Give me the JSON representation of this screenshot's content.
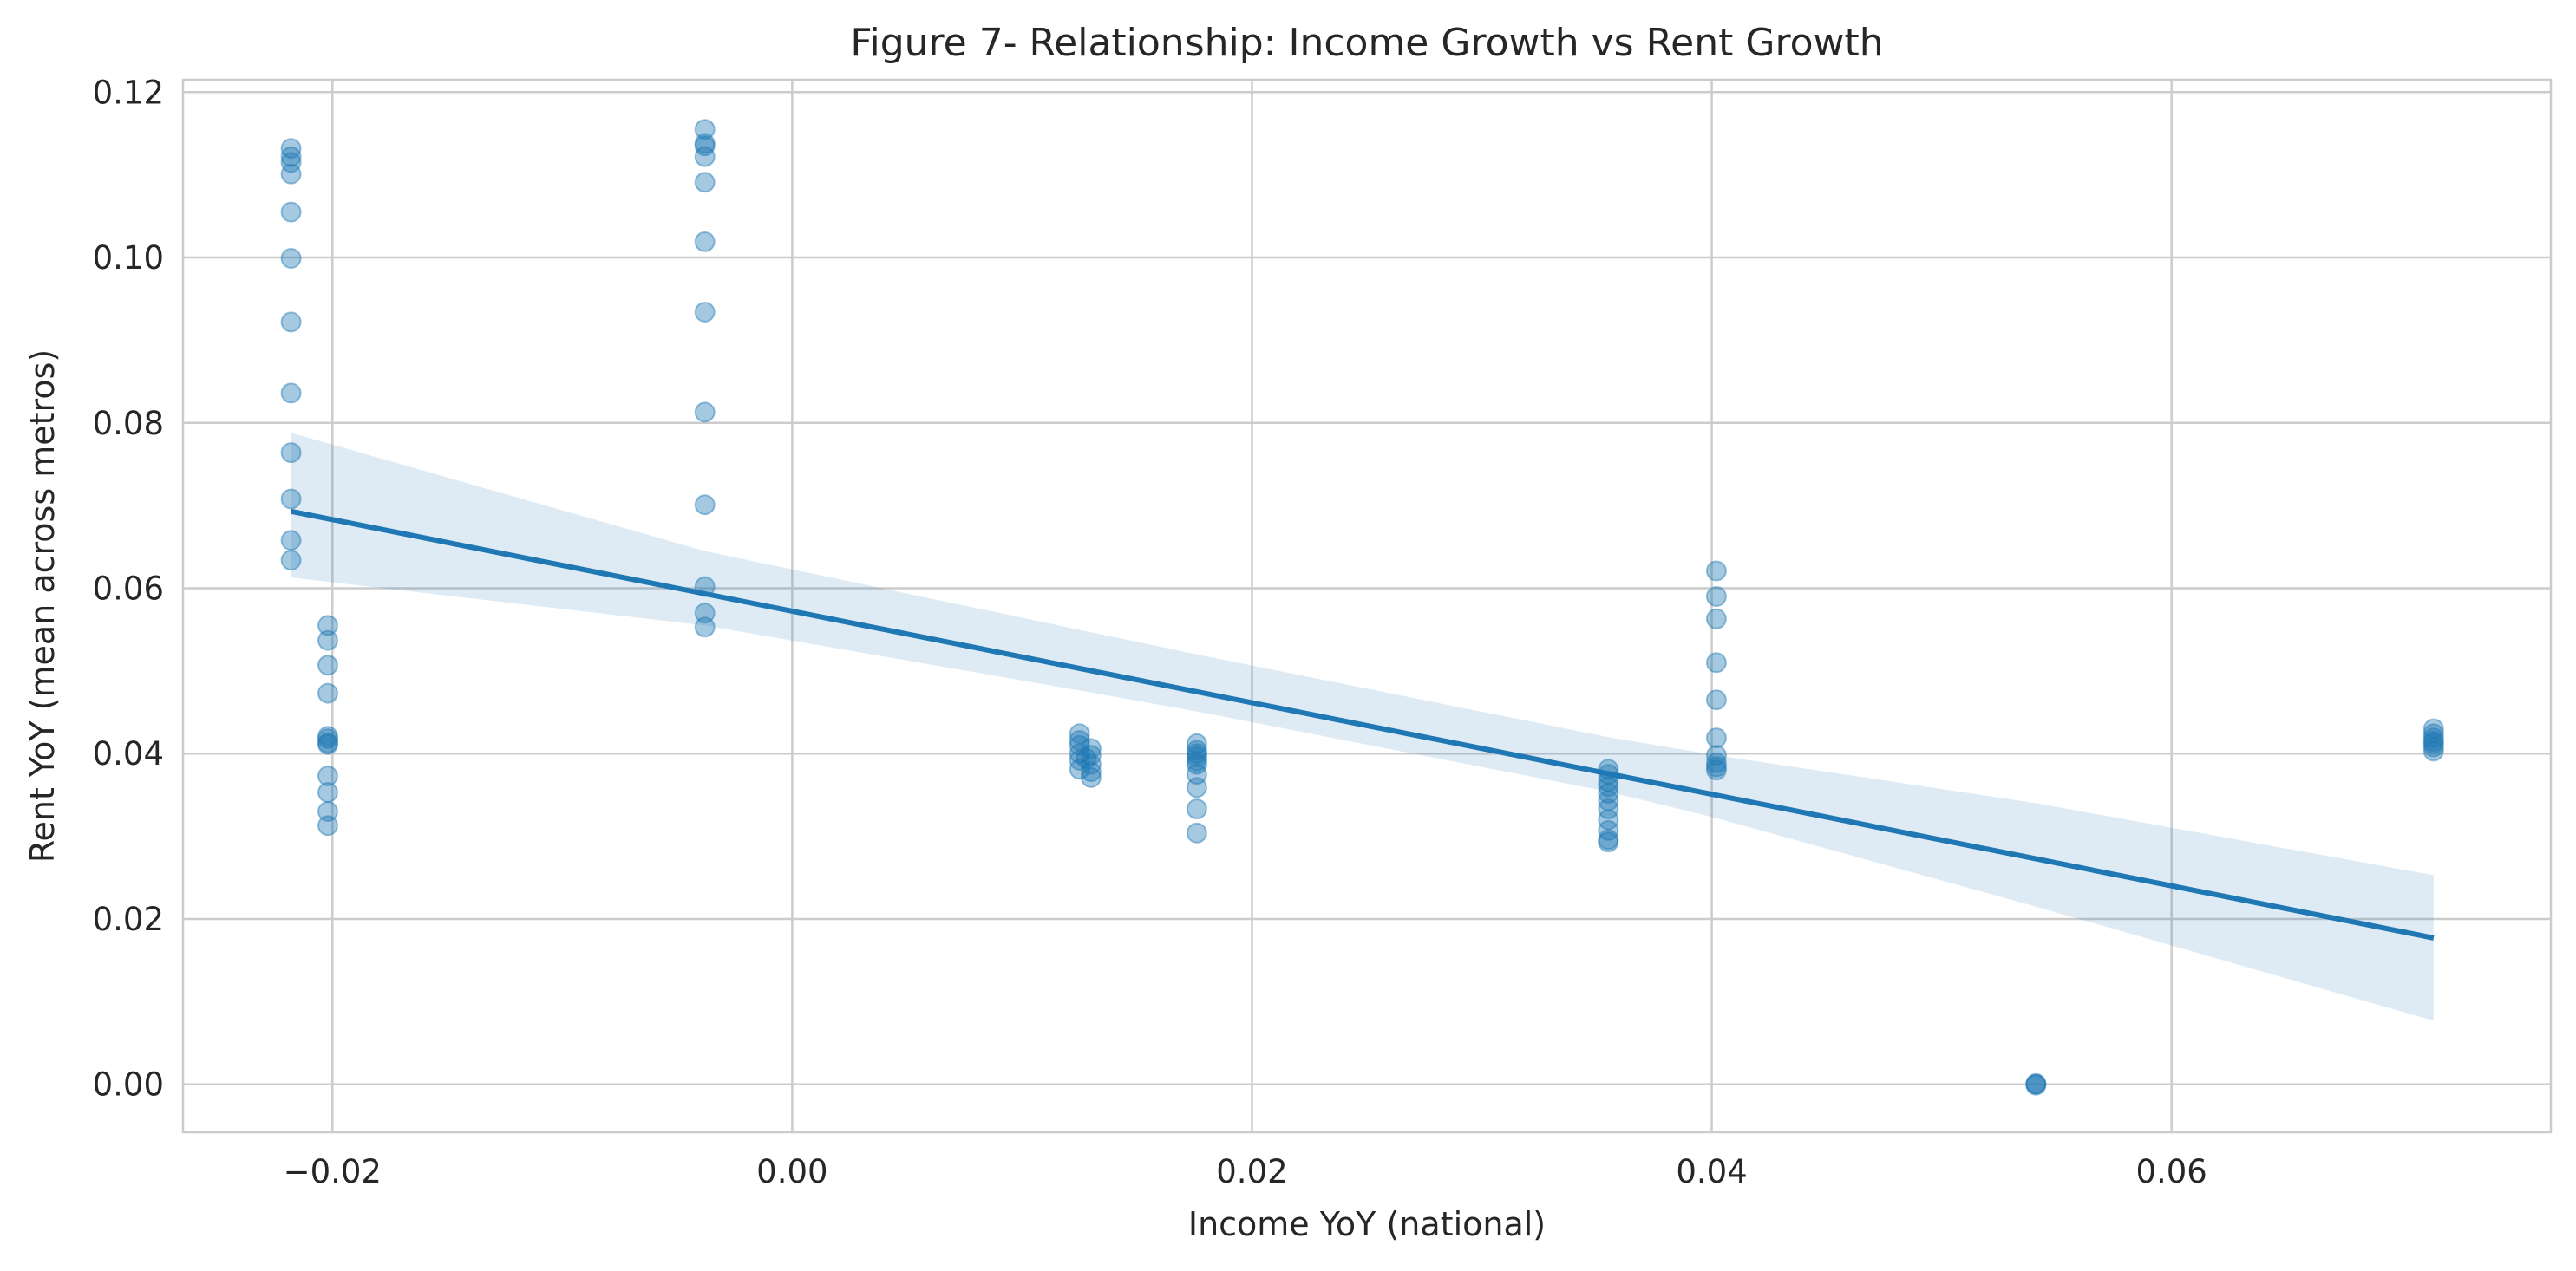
{
  "chart_data": {
    "type": "scatter",
    "title": "Figure 7- Relationship: Income Growth vs Rent Growth",
    "xlabel": "Income YoY (national)",
    "ylabel": "Rent YoY (mean across metros)",
    "xlim": [
      -0.0265,
      0.0765
    ],
    "ylim": [
      -0.0058,
      0.1215
    ],
    "x_ticks": [
      {
        "value": -0.02,
        "label": "−0.02"
      },
      {
        "value": 0.0,
        "label": "0.00"
      },
      {
        "value": 0.02,
        "label": "0.02"
      },
      {
        "value": 0.04,
        "label": "0.04"
      },
      {
        "value": 0.06,
        "label": "0.06"
      }
    ],
    "y_ticks": [
      {
        "value": 0.0,
        "label": "0.00"
      },
      {
        "value": 0.02,
        "label": "0.02"
      },
      {
        "value": 0.04,
        "label": "0.04"
      },
      {
        "value": 0.06,
        "label": "0.06"
      },
      {
        "value": 0.08,
        "label": "0.08"
      },
      {
        "value": 0.1,
        "label": "0.10"
      },
      {
        "value": 0.12,
        "label": "0.12"
      }
    ],
    "grid": true,
    "colors": {
      "points": "#1f77b4",
      "line": "#1f77b4",
      "band": "#1f77b4",
      "grid": "#cccccc",
      "text": "#262626"
    },
    "points": [
      {
        "x": -0.0218,
        "y": 0.1132
      },
      {
        "x": -0.0218,
        "y": 0.1122
      },
      {
        "x": -0.0218,
        "y": 0.1115
      },
      {
        "x": -0.0218,
        "y": 0.1101
      },
      {
        "x": -0.0218,
        "y": 0.1055
      },
      {
        "x": -0.0218,
        "y": 0.0999
      },
      {
        "x": -0.0218,
        "y": 0.0922
      },
      {
        "x": -0.0218,
        "y": 0.0836
      },
      {
        "x": -0.0218,
        "y": 0.0764
      },
      {
        "x": -0.0218,
        "y": 0.0708
      },
      {
        "x": -0.0218,
        "y": 0.0658
      },
      {
        "x": -0.0218,
        "y": 0.0634
      },
      {
        "x": -0.0202,
        "y": 0.0555
      },
      {
        "x": -0.0202,
        "y": 0.0537
      },
      {
        "x": -0.0202,
        "y": 0.0507
      },
      {
        "x": -0.0202,
        "y": 0.0473
      },
      {
        "x": -0.0202,
        "y": 0.0421
      },
      {
        "x": -0.0202,
        "y": 0.0418
      },
      {
        "x": -0.0202,
        "y": 0.0413
      },
      {
        "x": -0.0202,
        "y": 0.0411
      },
      {
        "x": -0.0202,
        "y": 0.0373
      },
      {
        "x": -0.0202,
        "y": 0.0353
      },
      {
        "x": -0.0202,
        "y": 0.033
      },
      {
        "x": -0.0202,
        "y": 0.0313
      },
      {
        "x": -0.0038,
        "y": 0.1155
      },
      {
        "x": -0.0038,
        "y": 0.1138
      },
      {
        "x": -0.0038,
        "y": 0.1135
      },
      {
        "x": -0.0038,
        "y": 0.1122
      },
      {
        "x": -0.0038,
        "y": 0.1091
      },
      {
        "x": -0.0038,
        "y": 0.1019
      },
      {
        "x": -0.0038,
        "y": 0.0934
      },
      {
        "x": -0.0038,
        "y": 0.0813
      },
      {
        "x": -0.0038,
        "y": 0.0701
      },
      {
        "x": -0.0038,
        "y": 0.0602
      },
      {
        "x": -0.0038,
        "y": 0.057
      },
      {
        "x": -0.0038,
        "y": 0.0553
      },
      {
        "x": 0.0125,
        "y": 0.0424
      },
      {
        "x": 0.0125,
        "y": 0.0416
      },
      {
        "x": 0.0125,
        "y": 0.041
      },
      {
        "x": 0.0125,
        "y": 0.04
      },
      {
        "x": 0.0125,
        "y": 0.0392
      },
      {
        "x": 0.0125,
        "y": 0.0381
      },
      {
        "x": 0.013,
        "y": 0.0406
      },
      {
        "x": 0.013,
        "y": 0.0398
      },
      {
        "x": 0.013,
        "y": 0.0387
      },
      {
        "x": 0.013,
        "y": 0.0378
      },
      {
        "x": 0.013,
        "y": 0.0371
      },
      {
        "x": 0.0128,
        "y": 0.0394
      },
      {
        "x": 0.0176,
        "y": 0.0412
      },
      {
        "x": 0.0176,
        "y": 0.0404
      },
      {
        "x": 0.0176,
        "y": 0.04
      },
      {
        "x": 0.0176,
        "y": 0.0396
      },
      {
        "x": 0.0176,
        "y": 0.0391
      },
      {
        "x": 0.0176,
        "y": 0.0387
      },
      {
        "x": 0.0176,
        "y": 0.0375
      },
      {
        "x": 0.0176,
        "y": 0.0359
      },
      {
        "x": 0.0176,
        "y": 0.0333
      },
      {
        "x": 0.0176,
        "y": 0.0304
      },
      {
        "x": 0.0355,
        "y": 0.0381
      },
      {
        "x": 0.0355,
        "y": 0.0375
      },
      {
        "x": 0.0355,
        "y": 0.0366
      },
      {
        "x": 0.0355,
        "y": 0.036
      },
      {
        "x": 0.0355,
        "y": 0.0352
      },
      {
        "x": 0.0355,
        "y": 0.0343
      },
      {
        "x": 0.0355,
        "y": 0.0333
      },
      {
        "x": 0.0355,
        "y": 0.032
      },
      {
        "x": 0.0355,
        "y": 0.0307
      },
      {
        "x": 0.0355,
        "y": 0.0296
      },
      {
        "x": 0.0355,
        "y": 0.0293
      },
      {
        "x": 0.0402,
        "y": 0.0621
      },
      {
        "x": 0.0402,
        "y": 0.059
      },
      {
        "x": 0.0402,
        "y": 0.0563
      },
      {
        "x": 0.0402,
        "y": 0.051
      },
      {
        "x": 0.0402,
        "y": 0.0465
      },
      {
        "x": 0.0402,
        "y": 0.0419
      },
      {
        "x": 0.0402,
        "y": 0.0398
      },
      {
        "x": 0.0402,
        "y": 0.0389
      },
      {
        "x": 0.0402,
        "y": 0.0384
      },
      {
        "x": 0.0402,
        "y": 0.038
      },
      {
        "x": 0.0541,
        "y": 0.0001
      },
      {
        "x": 0.0541,
        "y": 0.0
      },
      {
        "x": 0.0541,
        "y": -0.0001
      },
      {
        "x": 0.0714,
        "y": 0.043
      },
      {
        "x": 0.0714,
        "y": 0.0424
      },
      {
        "x": 0.0714,
        "y": 0.0419
      },
      {
        "x": 0.0714,
        "y": 0.0415
      },
      {
        "x": 0.0714,
        "y": 0.0412
      },
      {
        "x": 0.0714,
        "y": 0.0408
      },
      {
        "x": 0.0714,
        "y": 0.0403
      }
    ],
    "regression": {
      "x": [
        -0.0218,
        0.0714
      ],
      "y": [
        0.0693,
        0.0177
      ]
    },
    "confidence_band": {
      "x": [
        -0.0218,
        -0.0038,
        0.0128,
        0.0176,
        0.0355,
        0.0402,
        0.0541,
        0.0714
      ],
      "upper": [
        0.0788,
        0.0645,
        0.0548,
        0.052,
        0.042,
        0.0398,
        0.034,
        0.0253
      ],
      "lower": [
        0.0613,
        0.0555,
        0.0475,
        0.0451,
        0.0354,
        0.0322,
        0.0215,
        0.0077
      ]
    }
  }
}
